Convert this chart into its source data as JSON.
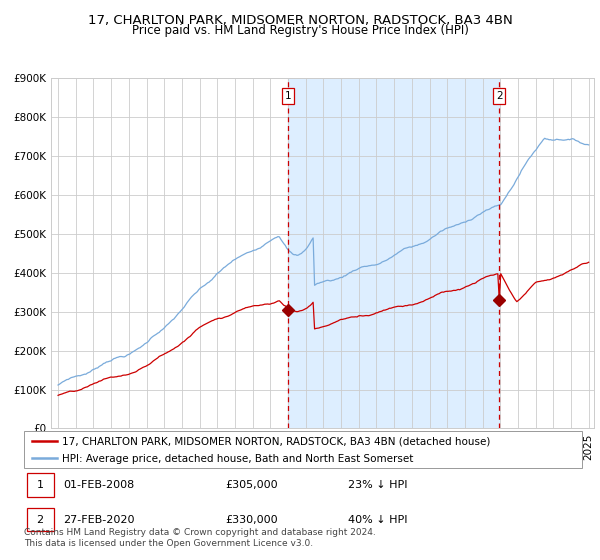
{
  "title": "17, CHARLTON PARK, MIDSOMER NORTON, RADSTOCK, BA3 4BN",
  "subtitle": "Price paid vs. HM Land Registry's House Price Index (HPI)",
  "ylim": [
    0,
    900000
  ],
  "yticks": [
    0,
    100000,
    200000,
    300000,
    400000,
    500000,
    600000,
    700000,
    800000,
    900000
  ],
  "ytick_labels": [
    "£0",
    "£100K",
    "£200K",
    "£300K",
    "£400K",
    "£500K",
    "£600K",
    "£700K",
    "£800K",
    "£900K"
  ],
  "hpi_color": "#7aabdb",
  "price_color": "#cc0000",
  "vline_color": "#cc0000",
  "shade_color": "#ddeeff",
  "background_color": "#ffffff",
  "grid_color": "#cccccc",
  "marker_color": "#990000",
  "border_color": "#999999",
  "event_box_color": "#cc0000",
  "legend_line1": "17, CHARLTON PARK, MIDSOMER NORTON, RADSTOCK, BA3 4BN (detached house)",
  "legend_line2": "HPI: Average price, detached house, Bath and North East Somerset",
  "footer": "Contains HM Land Registry data © Crown copyright and database right 2024.\nThis data is licensed under the Open Government Licence v3.0.",
  "title_fontsize": 9.5,
  "subtitle_fontsize": 8.5,
  "tick_fontsize": 7.5,
  "legend_fontsize": 7.5,
  "table_fontsize": 8.0,
  "footer_fontsize": 6.5,
  "n_points": 363,
  "year_start": 1995.0,
  "year_end": 2025.0,
  "ev1_idx": 157,
  "ev2_idx": 301,
  "ev1_price": 305000,
  "ev2_price": 330000,
  "ev1_label": "1",
  "ev2_label": "2",
  "ev1_date": "01-FEB-2008",
  "ev2_date": "27-FEB-2020",
  "ev1_amount": "£305,000",
  "ev2_amount": "£330,000",
  "ev1_pct": "23% ↓ HPI",
  "ev2_pct": "40% ↓ HPI"
}
